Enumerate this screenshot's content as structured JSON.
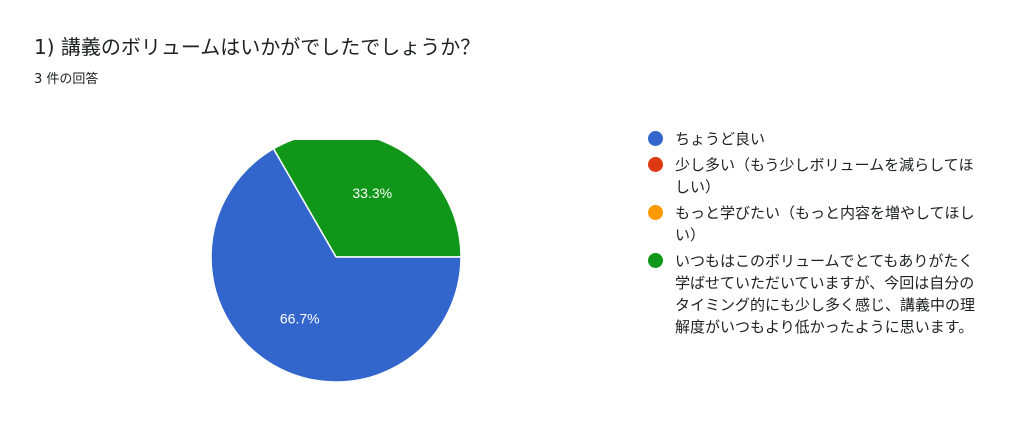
{
  "header": {
    "title": "1) 講義のボリュームはいかがでしたでしょうか？",
    "response_count": "3 件の回答"
  },
  "colors": {
    "blue": "#3366cc",
    "red": "#dc3912",
    "orange": "#ff9900",
    "green": "#109618",
    "slice_text": "#ffffff"
  },
  "chart_data": {
    "type": "pie",
    "categories": [
      "ちょうど良い",
      "少し多い（もう少しボリュームを減らしてほしい）",
      "もっと学びたい（もっと内容を増やしてほしい）",
      "いつもはこのボリュームでとてもありがたく学ばせていただいていますが、今回は自分のタイミング的にも少し多く感じ、講義中の理解度がいつもより低かったように思います。"
    ],
    "values": [
      2,
      0,
      0,
      1
    ],
    "slice_labels": [
      "66.7%",
      "",
      "",
      "33.3%"
    ],
    "colors": [
      "#3366cc",
      "#dc3912",
      "#ff9900",
      "#109618"
    ],
    "legend_placement": "right"
  }
}
